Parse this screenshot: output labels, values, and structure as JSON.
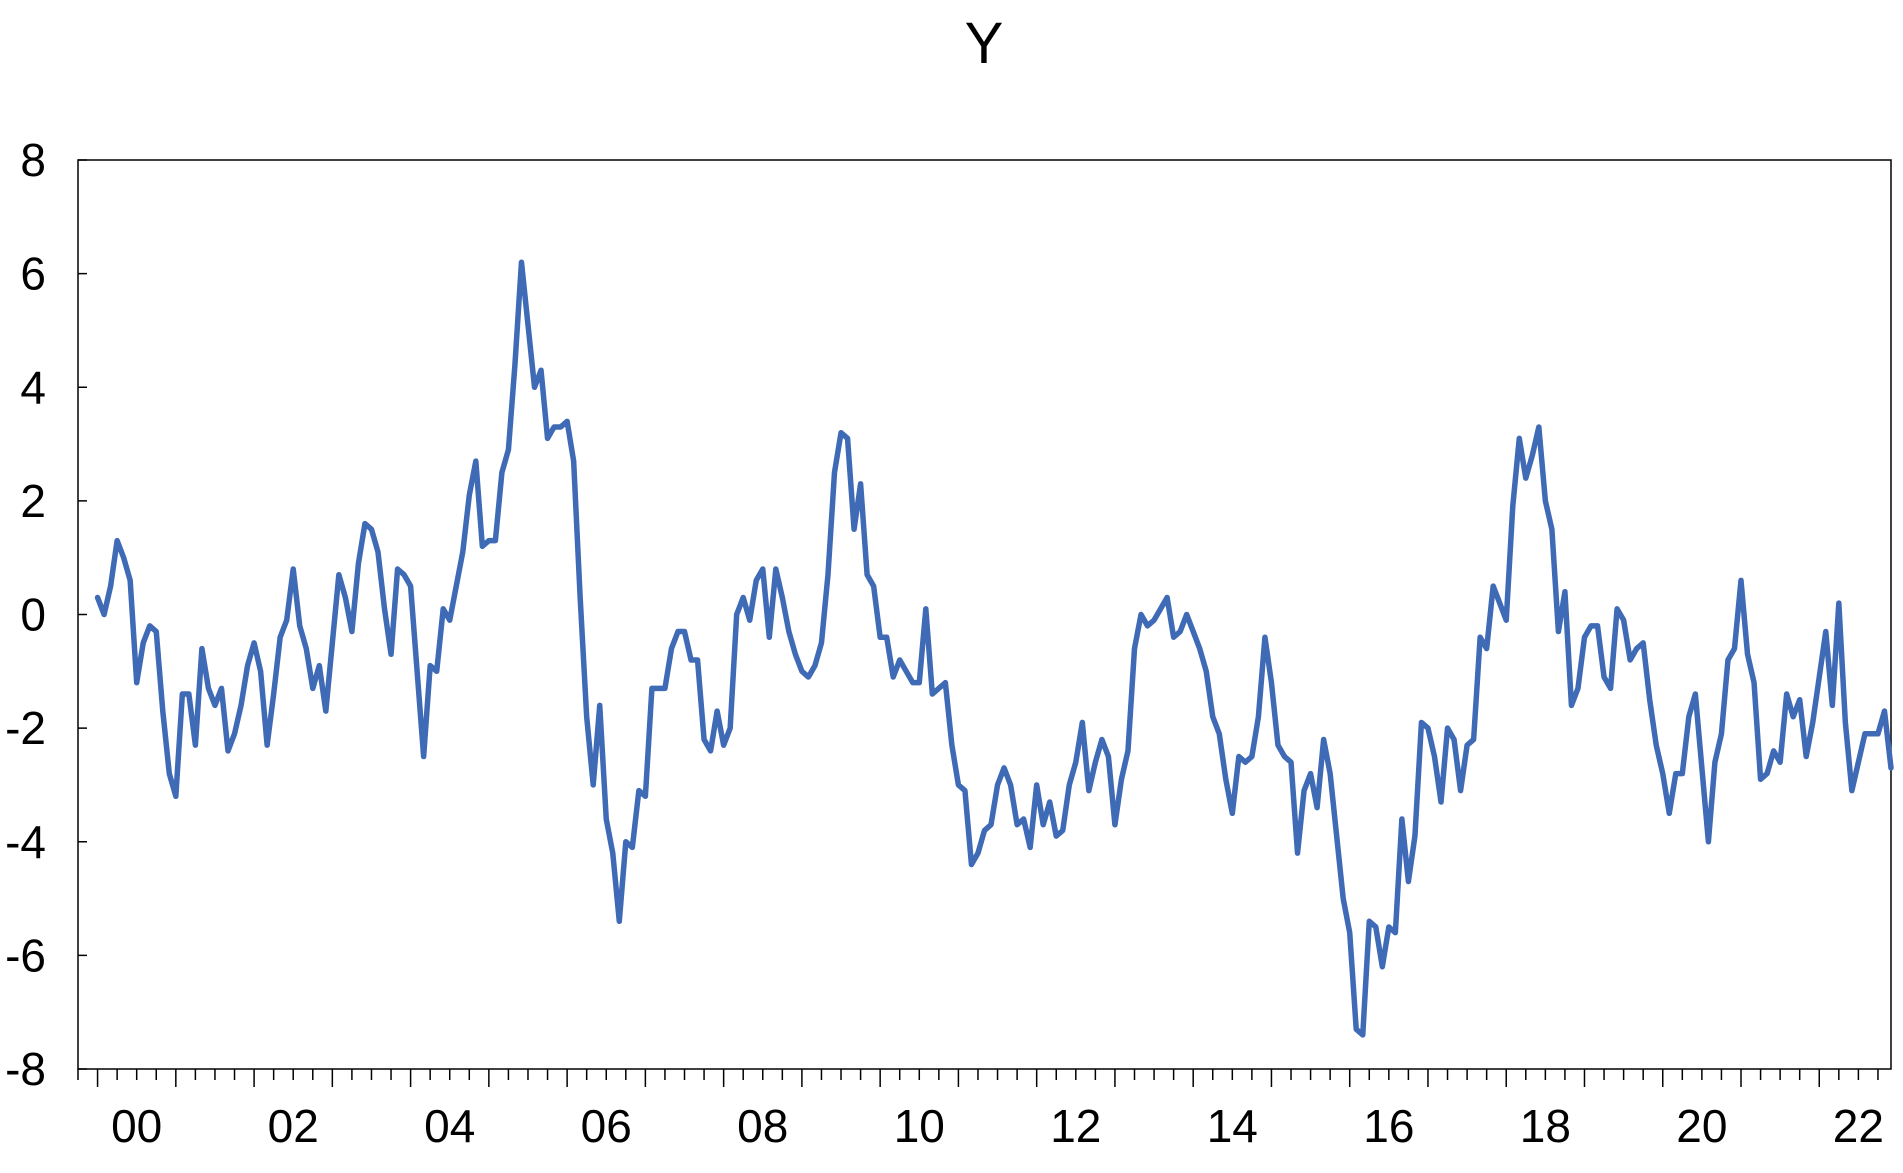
{
  "chart_data": {
    "type": "line",
    "title": "Y",
    "xlabel": "",
    "ylabel": "",
    "x_start": "2000-01",
    "x_end": "2022-12",
    "x_frequency": "monthly",
    "xlim": [
      "1999-10",
      "2022-12"
    ],
    "ylim": [
      -8,
      8
    ],
    "yticks": [
      8,
      6,
      4,
      2,
      0,
      -2,
      -4,
      -6,
      -8
    ],
    "yticks_labels": [
      "8",
      "6",
      "4",
      "2",
      "0",
      "-2",
      "-4",
      "-6",
      "-8"
    ],
    "xtick_labels": [
      "00",
      "02",
      "04",
      "06",
      "08",
      "10",
      "12",
      "14",
      "16",
      "18",
      "20",
      "22"
    ],
    "xtick_years": [
      2000,
      2002,
      2004,
      2006,
      2008,
      2010,
      2012,
      2014,
      2016,
      2018,
      2020,
      2022
    ],
    "grid": false,
    "legend": "none",
    "line_color": "#3f6ab5",
    "series": [
      {
        "values": [
          0.3,
          0.0,
          0.5,
          1.3,
          1.0,
          0.6,
          -1.2,
          -0.5,
          -0.2,
          -0.3,
          -1.7,
          -2.8,
          -3.2,
          -1.4,
          -1.4,
          -2.3,
          -0.6,
          -1.3,
          -1.6,
          -1.3,
          -2.4,
          -2.1,
          -1.6,
          -0.9,
          -0.5,
          -1.0,
          -2.3,
          -1.4,
          -0.4,
          -0.1,
          0.8,
          -0.2,
          -0.6,
          -1.3,
          -0.9,
          -1.7,
          -0.5,
          0.7,
          0.3,
          -0.3,
          0.9,
          1.6,
          1.5,
          1.1,
          0.1,
          -0.7,
          0.8,
          0.7,
          0.5,
          -1.0,
          -2.5,
          -0.9,
          -1.0,
          0.1,
          -0.1,
          0.5,
          1.1,
          2.1,
          2.7,
          1.2,
          1.3,
          1.3,
          2.5,
          2.9,
          4.4,
          6.2,
          5.1,
          4.0,
          4.3,
          3.1,
          3.3,
          3.3,
          3.4,
          2.7,
          0.3,
          -1.8,
          -3.0,
          -1.6,
          -3.6,
          -4.2,
          -5.4,
          -4.0,
          -4.1,
          -3.1,
          -3.2,
          -1.3,
          -1.3,
          -1.3,
          -0.6,
          -0.3,
          -0.3,
          -0.8,
          -0.8,
          -2.2,
          -2.4,
          -1.7,
          -2.3,
          -2.0,
          0.0,
          0.3,
          -0.1,
          0.6,
          0.8,
          -0.4,
          0.8,
          0.3,
          -0.3,
          -0.7,
          -1.0,
          -1.1,
          -0.9,
          -0.5,
          0.7,
          2.5,
          3.2,
          3.1,
          1.5,
          2.3,
          0.7,
          0.5,
          -0.4,
          -0.4,
          -1.1,
          -0.8,
          -1.0,
          -1.2,
          -1.2,
          0.1,
          -1.4,
          -1.3,
          -1.2,
          -2.3,
          -3.0,
          -3.1,
          -4.4,
          -4.2,
          -3.8,
          -3.7,
          -3.0,
          -2.7,
          -3.0,
          -3.7,
          -3.6,
          -4.1,
          -3.0,
          -3.7,
          -3.3,
          -3.9,
          -3.8,
          -3.0,
          -2.6,
          -1.9,
          -3.1,
          -2.6,
          -2.2,
          -2.5,
          -3.7,
          -2.9,
          -2.4,
          -0.6,
          0.0,
          -0.2,
          -0.1,
          0.1,
          0.3,
          -0.4,
          -0.3,
          0.0,
          -0.3,
          -0.6,
          -1.0,
          -1.8,
          -2.1,
          -2.9,
          -3.5,
          -2.5,
          -2.6,
          -2.5,
          -1.8,
          -0.4,
          -1.2,
          -2.3,
          -2.5,
          -2.6,
          -4.2,
          -3.1,
          -2.8,
          -3.4,
          -2.2,
          -2.8,
          -3.9,
          -5.0,
          -5.6,
          -7.3,
          -7.4,
          -5.4,
          -5.5,
          -6.2,
          -5.5,
          -5.6,
          -3.6,
          -4.7,
          -3.9,
          -1.9,
          -2.0,
          -2.5,
          -3.3,
          -2.0,
          -2.2,
          -3.1,
          -2.3,
          -2.2,
          -0.4,
          -0.6,
          0.5,
          0.2,
          -0.1,
          1.9,
          3.1,
          2.4,
          2.8,
          3.3,
          2.0,
          1.5,
          -0.3,
          0.4,
          -1.6,
          -1.3,
          -0.4,
          -0.2,
          -0.2,
          -1.1,
          -1.3,
          0.1,
          -0.1,
          -0.8,
          -0.6,
          -0.5,
          -1.5,
          -2.3,
          -2.8,
          -3.5,
          -2.8,
          -2.8,
          -1.8,
          -1.4,
          -2.7,
          -4.0,
          -2.6,
          -2.1,
          -0.8,
          -0.6,
          0.6,
          -0.7,
          -1.2,
          -2.9,
          -2.8,
          -2.4,
          -2.6,
          -1.4,
          -1.8,
          -1.5,
          -2.5,
          -1.9,
          -1.1,
          -0.3,
          -1.6,
          0.2,
          -1.9,
          -3.1,
          -2.6,
          -2.1,
          -2.1,
          -2.1,
          -1.7,
          -2.7
        ]
      }
    ]
  }
}
